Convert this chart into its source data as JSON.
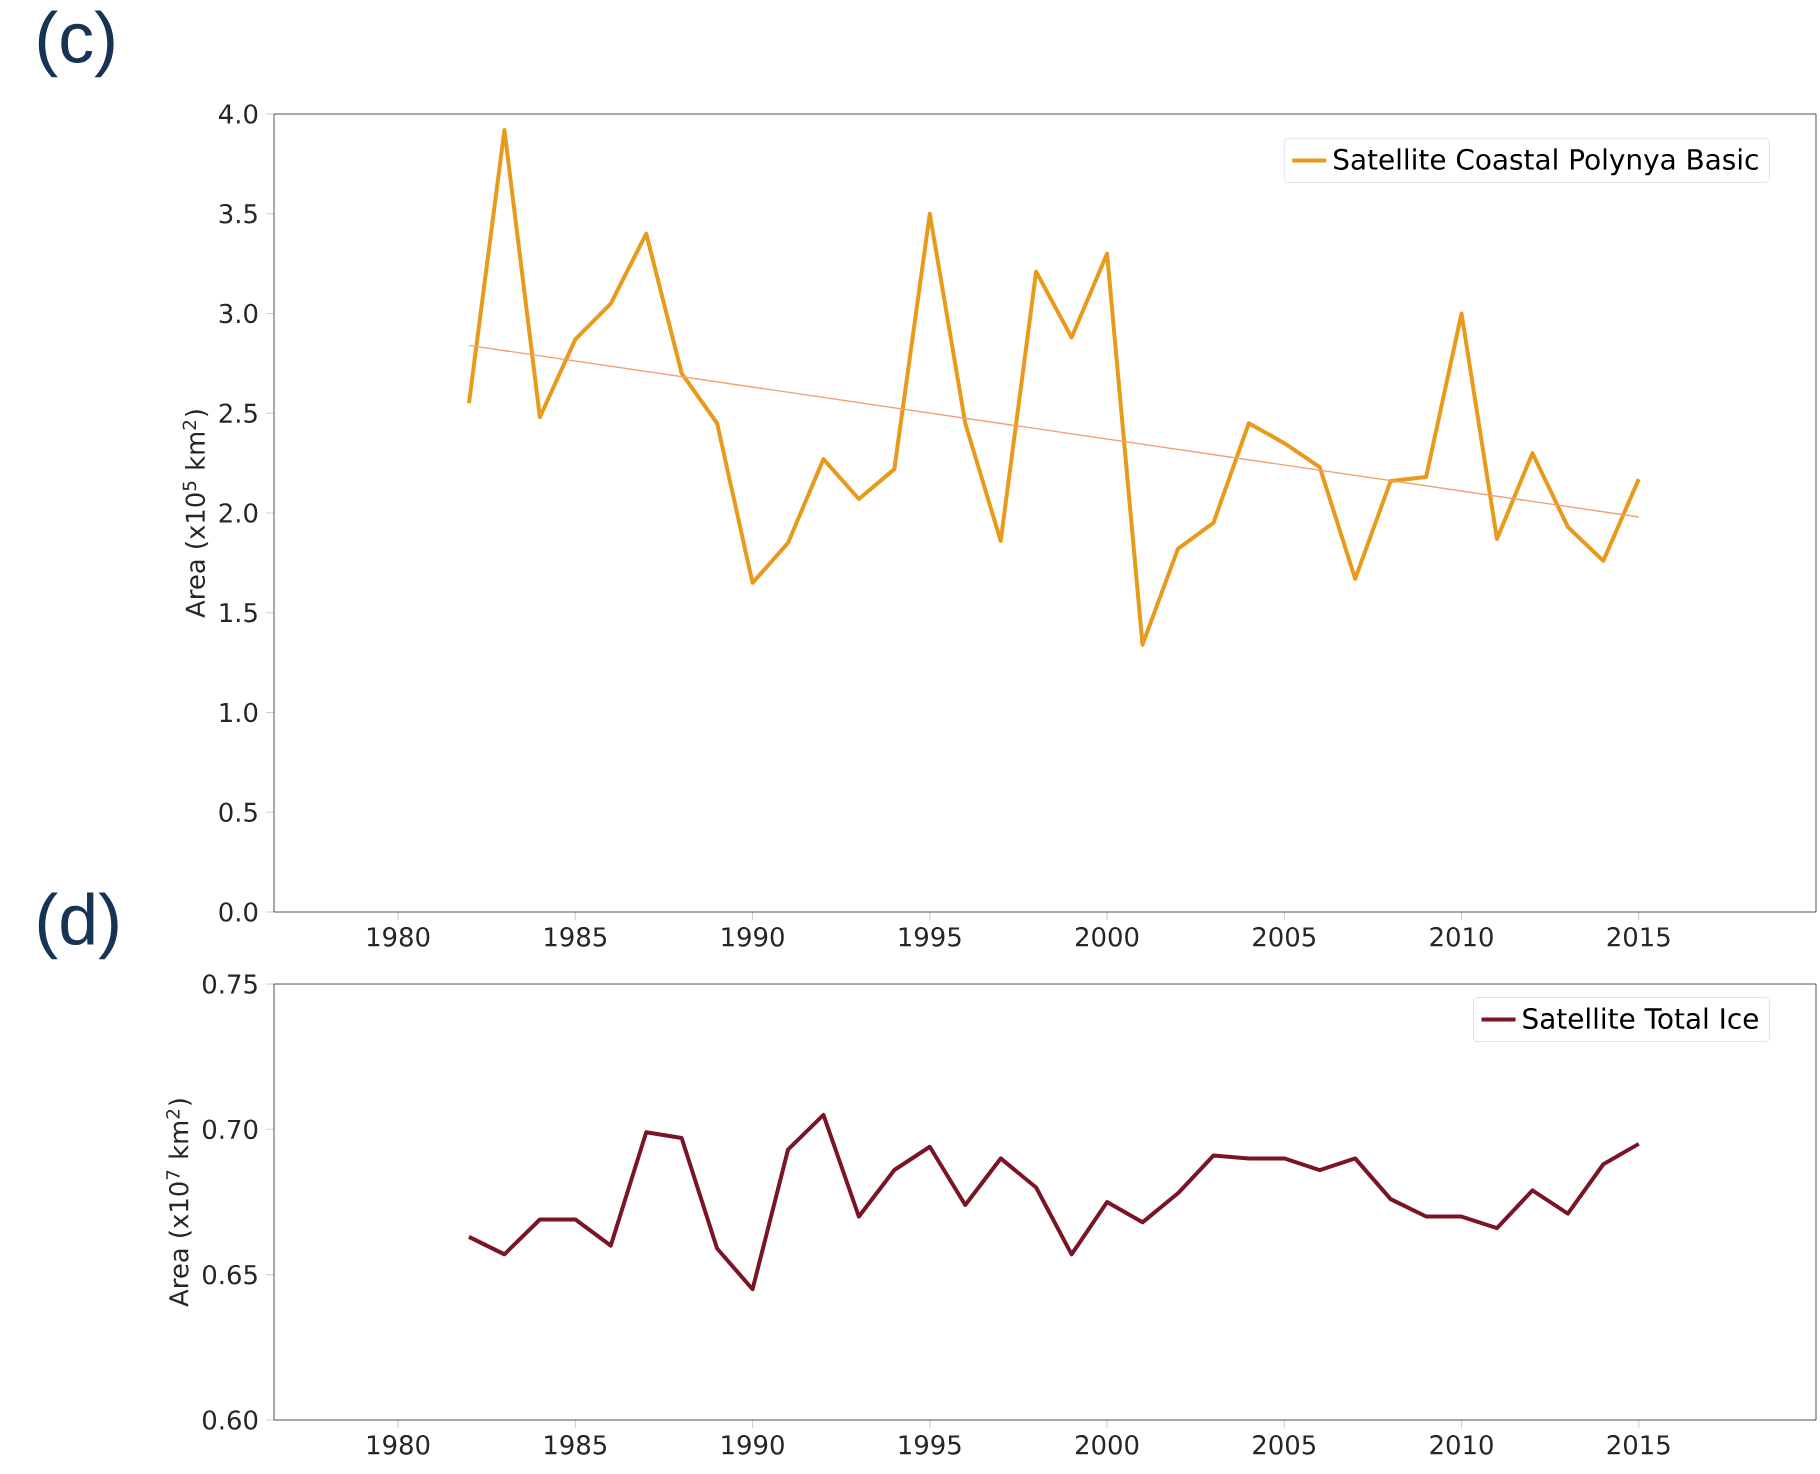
{
  "chart_data": [
    {
      "type": "line",
      "title": "(c)",
      "ylabel": "Area (x10$^{5}$ km$^{2}$)",
      "legend": "top right",
      "grid": false,
      "xlim": [
        1976.5,
        2020
      ],
      "xticks": [
        1980,
        1985,
        1990,
        1995,
        2000,
        2005,
        2010,
        2015
      ],
      "ylim": [
        0,
        4
      ],
      "yticks": [
        {
          "value": 0,
          "label": "0.0"
        },
        {
          "value": 0.5,
          "label": "0.5"
        },
        {
          "value": 1,
          "label": "1.0"
        },
        {
          "value": 1.5,
          "label": "1.5"
        },
        {
          "value": 2,
          "label": "2.0"
        },
        {
          "value": 2.5,
          "label": "2.5"
        },
        {
          "value": 3,
          "label": "3.0"
        },
        {
          "value": 3.5,
          "label": "3.5"
        },
        {
          "value": 4,
          "label": "4.0"
        }
      ],
      "x": [
        1982,
        1983,
        1984,
        1985,
        1986,
        1987,
        1988,
        1989,
        1990,
        1991,
        1992,
        1993,
        1994,
        1995,
        1996,
        1997,
        1998,
        1999,
        2000,
        2001,
        2002,
        2003,
        2004,
        2005,
        2006,
        2007,
        2008,
        2009,
        2010,
        2011,
        2012,
        2013,
        2014,
        2015
      ],
      "series": [
        {
          "name": "Satellite Coastal Polynya Basic",
          "color": "#e89a1c",
          "values": [
            2.55,
            3.92,
            2.48,
            2.87,
            3.05,
            3.4,
            2.7,
            2.45,
            1.65,
            1.85,
            2.27,
            2.07,
            2.22,
            3.5,
            2.45,
            1.86,
            3.21,
            2.88,
            3.3,
            1.34,
            1.82,
            1.95,
            2.45,
            2.35,
            2.23,
            1.67,
            2.16,
            2.18,
            3.0,
            1.87,
            2.3,
            1.93,
            1.76,
            2.17
          ]
        },
        {
          "type": "line",
          "color": "#f0a070",
          "x": [
            1982,
            2015
          ],
          "values": [
            2.84,
            1.98
          ]
        }
      ]
    },
    {
      "type": "line",
      "title": "(d)",
      "ylabel": "Area (x10$^{7}$ km$^{2}$)",
      "legend": "top right",
      "grid": false,
      "xlim": [
        1976.5,
        2020
      ],
      "xticks": [
        1980,
        1985,
        1990,
        1995,
        2000,
        2005,
        2010,
        2015
      ],
      "ylim": [
        0.6,
        0.75
      ],
      "yticks": [
        {
          "value": 0.6,
          "label": "0.60"
        },
        {
          "value": 0.65,
          "label": "0.65"
        },
        {
          "value": 0.7,
          "label": "0.70"
        },
        {
          "value": 0.75,
          "label": "0.75"
        }
      ],
      "x": [
        1982,
        1983,
        1984,
        1985,
        1986,
        1987,
        1988,
        1989,
        1990,
        1991,
        1992,
        1993,
        1994,
        1995,
        1996,
        1997,
        1998,
        1999,
        2000,
        2001,
        2002,
        2003,
        2004,
        2005,
        2006,
        2007,
        2008,
        2009,
        2010,
        2011,
        2012,
        2013,
        2014,
        2015
      ],
      "series": [
        {
          "name": "Satellite Total Ice",
          "color": "#7a1526",
          "values": [
            0.663,
            0.657,
            0.669,
            0.669,
            0.66,
            0.699,
            0.697,
            0.659,
            0.645,
            0.693,
            0.705,
            0.67,
            0.686,
            0.694,
            0.674,
            0.69,
            0.68,
            0.657,
            0.675,
            0.668,
            0.678,
            0.691,
            0.69,
            0.69,
            0.686,
            0.69,
            0.676,
            0.67,
            0.67,
            0.666,
            0.679,
            0.671,
            0.688,
            0.695
          ]
        }
      ]
    }
  ]
}
